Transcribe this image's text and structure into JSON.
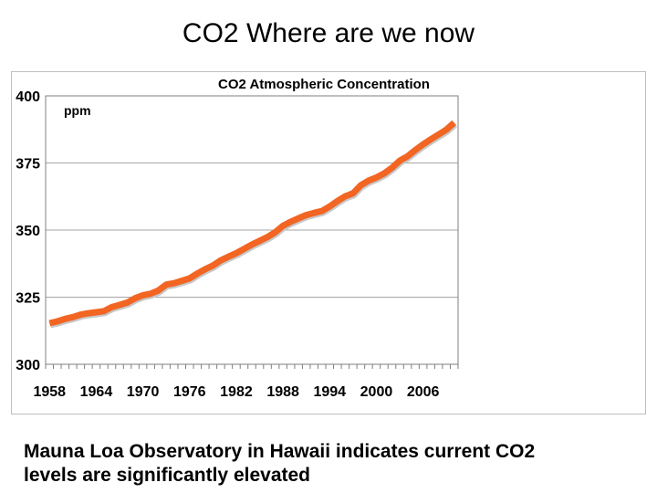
{
  "slide": {
    "title": "CO2 Where are we now",
    "footer_lines": [
      "Mauna Loa Observatory in Hawaii indicates current CO2",
      "levels are significantly elevated"
    ]
  },
  "chart_data": {
    "type": "line",
    "title": "CO2 Atmospheric Concentration",
    "ylabel": "ppm",
    "xlabel": "",
    "ylim": [
      300,
      400
    ],
    "yticks": [
      300,
      325,
      350,
      375,
      400
    ],
    "xtick_labels": [
      "1958",
      "1964",
      "1970",
      "1976",
      "1982",
      "1988",
      "1994",
      "2000",
      "2006"
    ],
    "grid": "horizontal",
    "legend": "none",
    "series_color": "#f26522",
    "x": [
      1958,
      1959,
      1960,
      1961,
      1962,
      1963,
      1964,
      1965,
      1966,
      1967,
      1968,
      1969,
      1970,
      1971,
      1972,
      1973,
      1974,
      1975,
      1976,
      1977,
      1978,
      1979,
      1980,
      1981,
      1982,
      1983,
      1984,
      1985,
      1986,
      1987,
      1988,
      1989,
      1990,
      1991,
      1992,
      1993,
      1994,
      1995,
      1996,
      1997,
      1998,
      1999,
      2000,
      2001,
      2002,
      2003,
      2004,
      2005,
      2006,
      2007,
      2008,
      2009,
      2010
    ],
    "values": [
      315.3,
      316.0,
      316.9,
      317.6,
      318.5,
      319.0,
      319.4,
      319.8,
      321.3,
      322.1,
      323.0,
      324.6,
      325.7,
      326.3,
      327.5,
      329.7,
      330.2,
      331.1,
      332.0,
      333.8,
      335.4,
      336.8,
      338.7,
      340.1,
      341.4,
      343.0,
      344.6,
      346.0,
      347.4,
      349.2,
      351.6,
      353.1,
      354.4,
      355.6,
      356.4,
      357.1,
      358.8,
      360.8,
      362.6,
      363.7,
      366.7,
      368.4,
      369.6,
      371.1,
      373.2,
      375.8,
      377.5,
      379.8,
      381.9,
      383.8,
      385.6,
      387.4,
      390.0
    ]
  }
}
